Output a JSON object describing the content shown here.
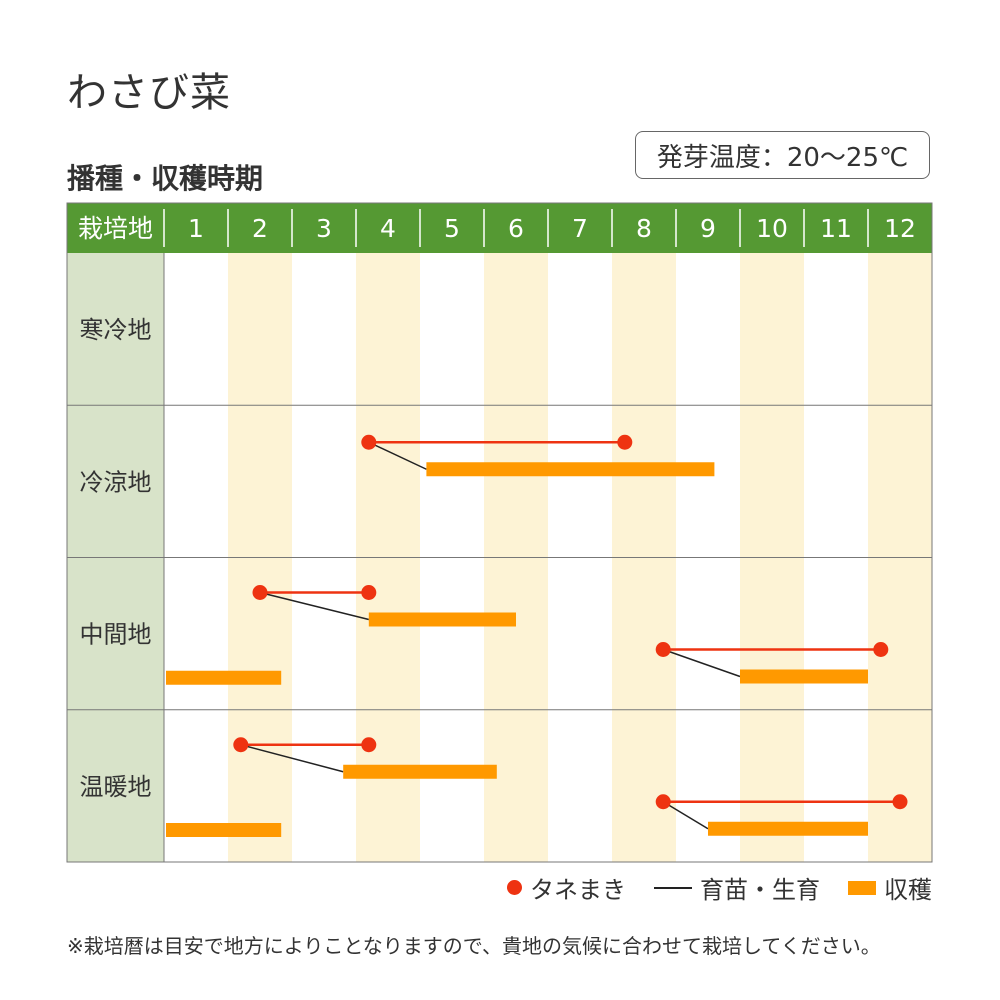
{
  "title": "わさび菜",
  "subtitle": "播種・収穫時期",
  "temperature": "発芽温度：20〜25℃",
  "note": "※栽培暦は目安で地方によりことなりますので、貴地の気候に合わせて栽培してください。",
  "colors": {
    "header_green": "#559933",
    "region_cell": "#d8e3c9",
    "stripe": "#fdf3d5",
    "sowing": "#ee3311",
    "harvest": "#ff9900",
    "grid": "#777777"
  },
  "chart_data": {
    "type": "table",
    "header_label": "栽培地",
    "months": [
      "1",
      "2",
      "3",
      "4",
      "5",
      "6",
      "7",
      "8",
      "9",
      "10",
      "11",
      "12"
    ],
    "regions": [
      {
        "name": "寒冷地",
        "schedules": []
      },
      {
        "name": "冷涼地",
        "schedules": [
          {
            "sow_start": 4.2,
            "sow_end": 8.2,
            "harvest_start": 5.1,
            "harvest_end": 9.6
          }
        ]
      },
      {
        "name": "中間地",
        "schedules": [
          {
            "sow_start": 2.5,
            "sow_end": 4.2,
            "harvest_start": 4.2,
            "harvest_end": 6.5
          },
          {
            "sow_start": 8.8,
            "sow_end": 12.2,
            "harvest_start": 10.0,
            "harvest_end": 12.0
          },
          {
            "harvest_start": 1.0,
            "harvest_end": 2.8
          }
        ]
      },
      {
        "name": "温暖地",
        "schedules": [
          {
            "sow_start": 2.2,
            "sow_end": 4.2,
            "harvest_start": 3.8,
            "harvest_end": 6.2
          },
          {
            "sow_start": 8.8,
            "sow_end": 12.5,
            "harvest_start": 9.5,
            "harvest_end": 12.0
          },
          {
            "harvest_start": 1.0,
            "harvest_end": 2.8
          }
        ]
      }
    ],
    "legend": [
      {
        "key": "sowing",
        "label": "タネまき"
      },
      {
        "key": "nursery",
        "label": "育苗・生育"
      },
      {
        "key": "harvest",
        "label": "収穫"
      }
    ]
  }
}
